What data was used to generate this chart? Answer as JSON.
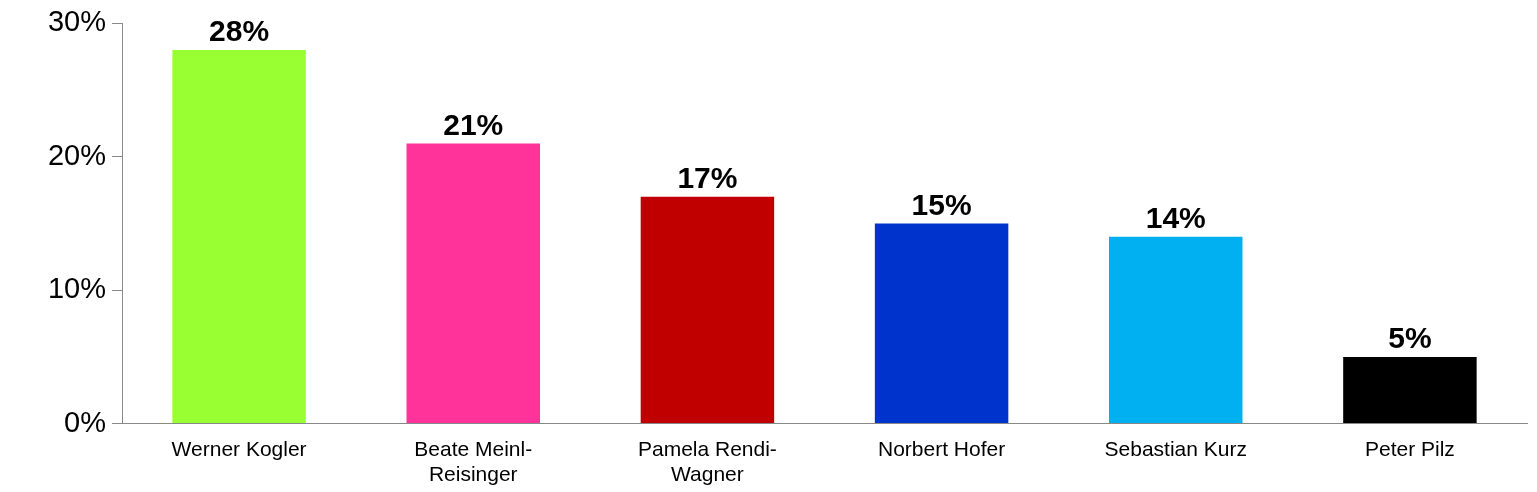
{
  "chart_data": {
    "type": "bar",
    "categories": [
      "Werner Kogler",
      "Beate Meinl-Reisinger",
      "Pamela Rendi-Wagner",
      "Norbert Hofer",
      "Sebastian Kurz",
      "Peter Pilz"
    ],
    "values": [
      28,
      21,
      17,
      15,
      14,
      5
    ],
    "colors": [
      "#99ff33",
      "#ff3399",
      "#c00000",
      "#0033cc",
      "#00b0f0",
      "#000000"
    ],
    "value_labels": [
      "28%",
      "21%",
      "17%",
      "15%",
      "14%",
      "5%"
    ],
    "ylim": [
      0,
      30
    ],
    "yticks": [
      {
        "value": 0,
        "label": "0%"
      },
      {
        "value": 10,
        "label": "10%"
      },
      {
        "value": 20,
        "label": "20%"
      },
      {
        "value": 30,
        "label": "30%"
      }
    ],
    "grid": false,
    "legend": false
  }
}
